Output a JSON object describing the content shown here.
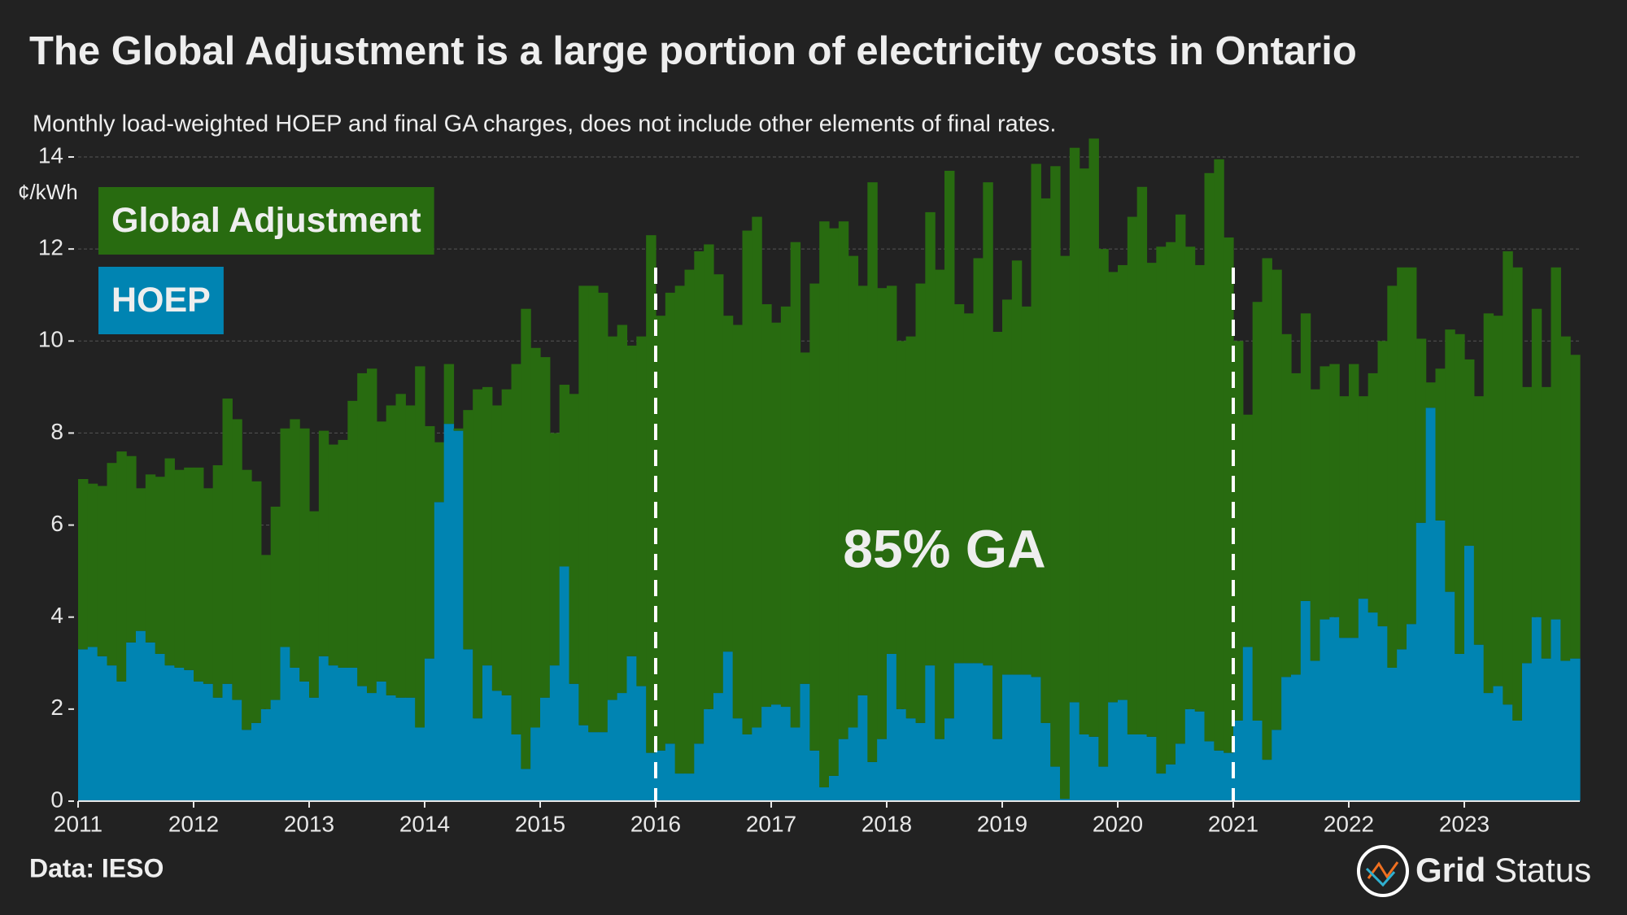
{
  "chart_data": {
    "type": "stacked_bar",
    "title": "The Global Adjustment is a large portion of electricity costs in Ontario",
    "subtitle": "Monthly load-weighted HOEP and final GA charges, does not include other elements of final rates.",
    "y_label": "¢/kWh",
    "source": "Data: IESO",
    "logo": [
      "Grid",
      "Status"
    ],
    "annotations": [
      {
        "text": "85% GA",
        "from": 2016,
        "to": 2021
      }
    ],
    "grid": true,
    "xlim": [
      2011,
      2024
    ],
    "xticks": [
      2011,
      2012,
      2013,
      2014,
      2015,
      2016,
      2017,
      2018,
      2019,
      2020,
      2021,
      2022,
      2023
    ],
    "ylim": [
      0,
      14
    ],
    "yticks": [
      0,
      2,
      4,
      6,
      8,
      10,
      12,
      14
    ],
    "x": [
      "2011-01",
      "2011-02",
      "2011-03",
      "2011-04",
      "2011-05",
      "2011-06",
      "2011-07",
      "2011-08",
      "2011-09",
      "2011-10",
      "2011-11",
      "2011-12",
      "2012-01",
      "2012-02",
      "2012-03",
      "2012-04",
      "2012-05",
      "2012-06",
      "2012-07",
      "2012-08",
      "2012-09",
      "2012-10",
      "2012-11",
      "2012-12",
      "2013-01",
      "2013-02",
      "2013-03",
      "2013-04",
      "2013-05",
      "2013-06",
      "2013-07",
      "2013-08",
      "2013-09",
      "2013-10",
      "2013-11",
      "2013-12",
      "2014-01",
      "2014-02",
      "2014-03",
      "2014-04",
      "2014-05",
      "2014-06",
      "2014-07",
      "2014-08",
      "2014-09",
      "2014-10",
      "2014-11",
      "2014-12",
      "2015-01",
      "2015-02",
      "2015-03",
      "2015-04",
      "2015-05",
      "2015-06",
      "2015-07",
      "2015-08",
      "2015-09",
      "2015-10",
      "2015-11",
      "2015-12",
      "2016-01",
      "2016-02",
      "2016-03",
      "2016-04",
      "2016-05",
      "2016-06",
      "2016-07",
      "2016-08",
      "2016-09",
      "2016-10",
      "2016-11",
      "2016-12",
      "2017-01",
      "2017-02",
      "2017-03",
      "2017-04",
      "2017-05",
      "2017-06",
      "2017-07",
      "2017-08",
      "2017-09",
      "2017-10",
      "2017-11",
      "2017-12",
      "2018-01",
      "2018-02",
      "2018-03",
      "2018-04",
      "2018-05",
      "2018-06",
      "2018-07",
      "2018-08",
      "2018-09",
      "2018-10",
      "2018-11",
      "2018-12",
      "2019-01",
      "2019-02",
      "2019-03",
      "2019-04",
      "2019-05",
      "2019-06",
      "2019-07",
      "2019-08",
      "2019-09",
      "2019-10",
      "2019-11",
      "2019-12",
      "2020-01",
      "2020-02",
      "2020-03",
      "2020-04",
      "2020-05",
      "2020-06",
      "2020-07",
      "2020-08",
      "2020-09",
      "2020-10",
      "2020-11",
      "2020-12",
      "2021-01",
      "2021-02",
      "2021-03",
      "2021-04",
      "2021-05",
      "2021-06",
      "2021-07",
      "2021-08",
      "2021-09",
      "2021-10",
      "2021-11",
      "2021-12",
      "2022-01",
      "2022-02",
      "2022-03",
      "2022-04",
      "2022-05",
      "2022-06",
      "2022-07",
      "2022-08",
      "2022-09",
      "2022-10",
      "2022-11",
      "2022-12",
      "2023-01",
      "2023-02",
      "2023-03",
      "2023-04",
      "2023-05",
      "2023-06",
      "2023-07",
      "2023-08",
      "2023-09",
      "2023-10",
      "2023-11",
      "2023-12"
    ],
    "series": [
      {
        "name": "HOEP",
        "color": "#0084b2",
        "values": [
          3.3,
          3.35,
          3.15,
          2.95,
          2.6,
          3.45,
          3.7,
          3.45,
          3.2,
          2.95,
          2.9,
          2.85,
          2.6,
          2.55,
          2.25,
          2.55,
          2.2,
          1.55,
          1.7,
          2.0,
          2.2,
          3.35,
          2.9,
          2.6,
          2.25,
          3.15,
          2.95,
          2.9,
          2.9,
          2.5,
          2.35,
          2.6,
          2.3,
          2.25,
          2.25,
          1.6,
          3.1,
          6.5,
          8.2,
          8.05,
          3.3,
          1.8,
          2.95,
          2.4,
          2.3,
          1.45,
          0.7,
          1.6,
          2.25,
          2.95,
          5.1,
          2.55,
          1.65,
          1.5,
          1.5,
          2.2,
          2.35,
          3.15,
          2.5,
          1.05,
          1.1,
          1.25,
          0.6,
          0.6,
          1.25,
          2.0,
          2.35,
          3.25,
          1.8,
          1.45,
          1.6,
          2.05,
          2.1,
          2.05,
          1.6,
          2.55,
          1.1,
          0.3,
          0.55,
          1.35,
          1.6,
          2.3,
          0.85,
          1.35,
          3.2,
          2.0,
          1.8,
          1.7,
          2.95,
          1.35,
          1.8,
          3.0,
          3.0,
          3.0,
          2.95,
          1.35,
          2.75,
          2.75,
          2.75,
          2.7,
          1.7,
          0.75,
          0.05,
          2.15,
          1.45,
          1.4,
          0.75,
          2.15,
          2.2,
          1.45,
          1.45,
          1.4,
          0.6,
          0.8,
          1.25,
          2.0,
          1.95,
          1.3,
          1.1,
          1.05,
          1.75,
          3.35,
          1.75,
          0.9,
          1.55,
          2.7,
          2.75,
          4.35,
          3.05,
          3.95,
          4.0,
          3.55,
          3.55,
          4.4,
          4.1,
          3.8,
          2.9,
          3.3,
          3.85,
          6.05,
          8.55,
          6.1,
          4.55,
          3.2,
          5.55,
          3.4,
          2.35,
          2.5,
          2.1,
          1.75,
          3.0,
          4.0,
          3.1,
          3.95,
          3.05,
          3.1
        ]
      },
      {
        "name": "Global Adjustment",
        "color": "#286b10",
        "values": [
          3.7,
          3.55,
          3.7,
          4.4,
          5.0,
          4.05,
          3.1,
          3.65,
          3.85,
          4.5,
          4.3,
          4.4,
          4.65,
          4.25,
          5.05,
          6.2,
          6.1,
          5.65,
          5.25,
          3.35,
          4.2,
          4.75,
          5.4,
          5.5,
          4.05,
          4.9,
          4.8,
          4.95,
          5.8,
          6.8,
          7.05,
          5.65,
          6.3,
          6.6,
          6.35,
          7.85,
          5.05,
          1.3,
          1.3,
          0.05,
          5.2,
          7.15,
          6.05,
          6.2,
          6.65,
          8.05,
          10.0,
          8.25,
          7.4,
          5.05,
          3.95,
          6.3,
          9.55,
          9.7,
          9.55,
          7.9,
          8.0,
          6.75,
          7.6,
          11.25,
          9.45,
          9.8,
          10.6,
          10.95,
          10.7,
          10.1,
          9.1,
          7.3,
          8.55,
          10.95,
          11.1,
          8.75,
          8.3,
          8.7,
          10.55,
          7.2,
          10.15,
          12.3,
          11.9,
          11.25,
          10.25,
          8.9,
          12.6,
          9.8,
          8.0,
          8.0,
          8.3,
          9.55,
          9.85,
          10.2,
          11.9,
          7.8,
          7.6,
          8.8,
          10.5,
          8.85,
          8.15,
          9.0,
          8.0,
          11.15,
          11.4,
          13.05,
          11.8,
          12.05,
          12.3,
          13.0,
          11.25,
          9.35,
          9.45,
          11.25,
          11.9,
          10.3,
          11.45,
          11.35,
          11.5,
          10.05,
          9.7,
          12.35,
          12.85,
          11.2,
          8.25,
          5.05,
          9.1,
          10.9,
          10.0,
          7.45,
          6.55,
          6.25,
          5.9,
          5.5,
          5.5,
          5.25,
          5.95,
          4.4,
          5.2,
          6.2,
          8.3,
          8.3,
          7.75,
          4.0,
          0.55,
          3.3,
          5.7,
          6.95,
          4.05,
          5.4,
          8.25,
          8.05,
          9.85,
          9.85,
          6.0,
          6.7,
          5.9,
          7.65,
          7.05,
          6.6
        ]
      }
    ]
  }
}
